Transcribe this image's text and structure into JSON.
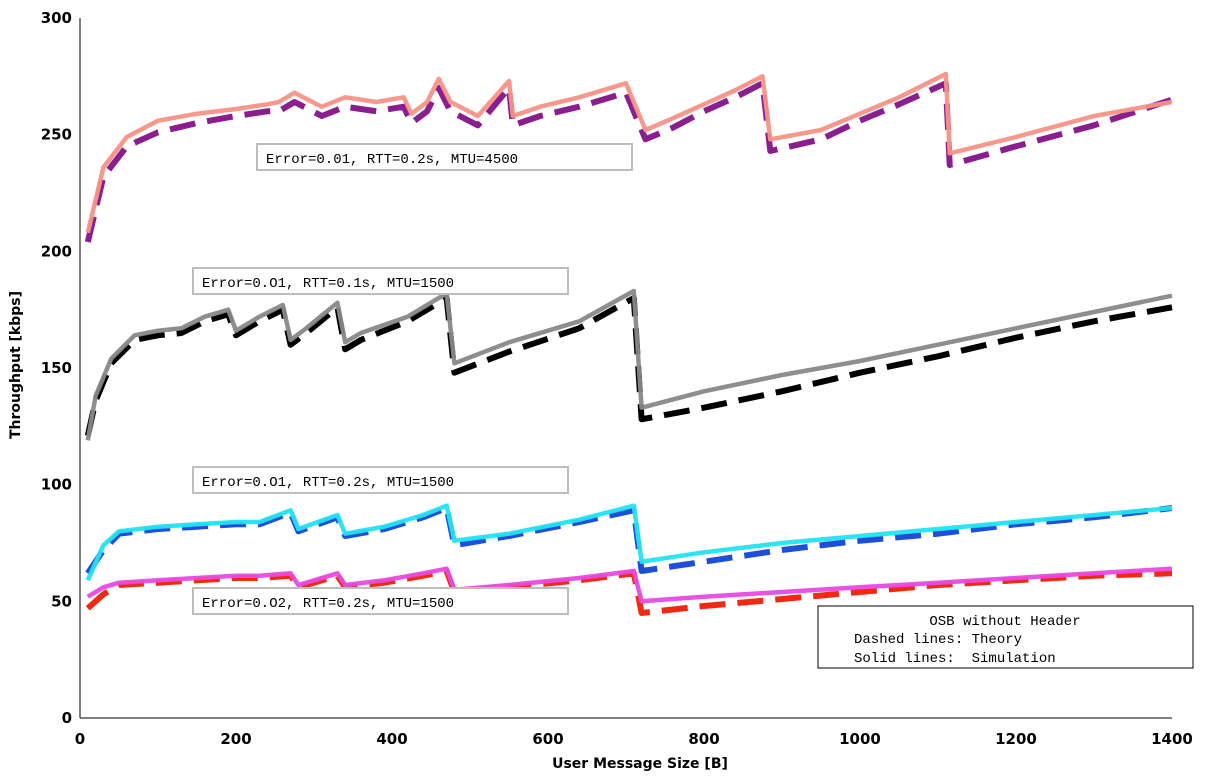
{
  "chart_data": {
    "type": "line",
    "title": "",
    "xlabel": "User Message Size [B]",
    "ylabel": "Throughput [kbps]",
    "xlim": [
      0,
      1400
    ],
    "ylim": [
      0,
      300
    ],
    "x_ticks": [
      "0",
      "200",
      "400",
      "600",
      "800",
      "1000",
      "1200",
      "1400"
    ],
    "y_ticks": [
      "0",
      "50",
      "100",
      "150",
      "200",
      "250",
      "300"
    ],
    "grid": false,
    "legend": {
      "placement": "bottom-right",
      "title": "OSB without Header",
      "lines": [
        "Dashed lines: Theory",
        "Solid lines:  Simulation"
      ]
    },
    "annotations": [
      "Error=0.01, RTT=0.2s, MTU=4500",
      "Error=0.O1, RTT=0.1s, MTU=1500",
      "Error=0.O1, RTT=0.2s, MTU=1500",
      "Error=0.O2, RTT=0.2s, MTU=1500"
    ],
    "series": [
      {
        "style": "dashed",
        "color": "#8b1e8f",
        "group": 1,
        "x": [
          10,
          30,
          60,
          100,
          150,
          200,
          240,
          255,
          275,
          310,
          340,
          380,
          415,
          425,
          445,
          460,
          475,
          510,
          550,
          555,
          590,
          640,
          700,
          725,
          760,
          800,
          840,
          875,
          885,
          950,
          1000,
          1050,
          1110,
          1115,
          1200,
          1300,
          1400
        ],
        "y": [
          204,
          232,
          245,
          251,
          255,
          258,
          260,
          260,
          264,
          258,
          262,
          260,
          262,
          255,
          260,
          270,
          260,
          254,
          270,
          254,
          258,
          262,
          268,
          248,
          253,
          260,
          266,
          272,
          243,
          248,
          256,
          263,
          272,
          237,
          245,
          254,
          265
        ]
      },
      {
        "style": "solid",
        "color": "#f59486",
        "group": 1,
        "x": [
          10,
          30,
          60,
          100,
          150,
          200,
          240,
          255,
          275,
          310,
          340,
          380,
          415,
          425,
          445,
          460,
          475,
          510,
          550,
          555,
          590,
          640,
          700,
          725,
          760,
          800,
          840,
          875,
          885,
          950,
          1000,
          1050,
          1110,
          1115,
          1200,
          1300,
          1400
        ],
        "y": [
          208,
          236,
          249,
          256,
          259,
          261,
          263,
          264,
          268,
          262,
          266,
          264,
          266,
          259,
          264,
          274,
          264,
          258,
          273,
          258,
          262,
          266,
          272,
          252,
          257,
          263,
          269,
          275,
          248,
          252,
          259,
          266,
          276,
          242,
          249,
          258,
          264
        ]
      },
      {
        "style": "dashed",
        "color": "#000000",
        "group": 2,
        "x": [
          10,
          20,
          40,
          70,
          100,
          130,
          160,
          190,
          200,
          230,
          260,
          270,
          290,
          330,
          340,
          360,
          420,
          470,
          480,
          550,
          640,
          710,
          720,
          800,
          900,
          1000,
          1100,
          1200,
          1300,
          1400
        ],
        "y": [
          121,
          136,
          152,
          162,
          164,
          165,
          170,
          173,
          164,
          170,
          175,
          160,
          165,
          176,
          158,
          162,
          170,
          180,
          148,
          157,
          167,
          180,
          128,
          133,
          140,
          148,
          155,
          163,
          170,
          176
        ]
      },
      {
        "style": "solid",
        "color": "#888888",
        "group": 2,
        "x": [
          10,
          20,
          40,
          70,
          100,
          130,
          160,
          190,
          200,
          230,
          260,
          270,
          290,
          330,
          340,
          360,
          420,
          470,
          480,
          550,
          640,
          710,
          720,
          800,
          900,
          1000,
          1100,
          1200,
          1300,
          1400
        ],
        "y": [
          119,
          138,
          154,
          164,
          166,
          167,
          172,
          175,
          166,
          172,
          177,
          162,
          167,
          178,
          161,
          165,
          172,
          182,
          152,
          161,
          170,
          183,
          133,
          140,
          147,
          153,
          160,
          167,
          174,
          181
        ]
      },
      {
        "style": "dashed",
        "color": "#1f4fd8",
        "group": 3,
        "x": [
          10,
          30,
          50,
          100,
          150,
          200,
          230,
          270,
          280,
          330,
          340,
          390,
          440,
          470,
          480,
          550,
          640,
          710,
          720,
          800,
          900,
          1000,
          1100,
          1200,
          1300,
          1400
        ],
        "y": [
          62,
          72,
          79,
          81,
          82,
          83,
          83,
          88,
          80,
          86,
          78,
          81,
          86,
          90,
          74,
          78,
          84,
          89,
          63,
          67,
          72,
          76,
          79,
          83,
          86,
          90
        ]
      },
      {
        "style": "solid",
        "color": "#22e3f2",
        "group": 3,
        "x": [
          10,
          30,
          50,
          100,
          150,
          200,
          230,
          270,
          280,
          330,
          340,
          390,
          440,
          470,
          480,
          550,
          640,
          710,
          720,
          800,
          900,
          1000,
          1100,
          1200,
          1300,
          1400
        ],
        "y": [
          59,
          74,
          80,
          82,
          83,
          84,
          84,
          89,
          81,
          87,
          79,
          82,
          87,
          91,
          76,
          79,
          85,
          91,
          67,
          71,
          75,
          78,
          81,
          84,
          87,
          90
        ]
      },
      {
        "style": "dashed",
        "color": "#f02a12",
        "group": 4,
        "x": [
          10,
          30,
          50,
          100,
          150,
          200,
          230,
          270,
          280,
          330,
          340,
          390,
          440,
          470,
          480,
          550,
          640,
          710,
          720,
          800,
          900,
          1000,
          1100,
          1200,
          1300,
          1400
        ],
        "y": [
          47,
          53,
          57,
          58,
          59,
          60,
          60,
          61,
          56,
          61,
          56,
          58,
          61,
          63,
          54,
          56,
          59,
          62,
          45,
          48,
          51,
          54,
          57,
          59,
          61,
          62
        ]
      },
      {
        "style": "solid",
        "color": "#e84ae0",
        "group": 4,
        "x": [
          10,
          30,
          50,
          100,
          150,
          200,
          230,
          270,
          280,
          330,
          340,
          390,
          440,
          470,
          480,
          550,
          640,
          710,
          720,
          800,
          900,
          1000,
          1100,
          1200,
          1300,
          1400
        ],
        "y": [
          52,
          56,
          58,
          59,
          60,
          61,
          61,
          62,
          57,
          62,
          57,
          59,
          62,
          64,
          55,
          57,
          60,
          63,
          50,
          52,
          54,
          56,
          58,
          60,
          62,
          64
        ]
      }
    ]
  }
}
